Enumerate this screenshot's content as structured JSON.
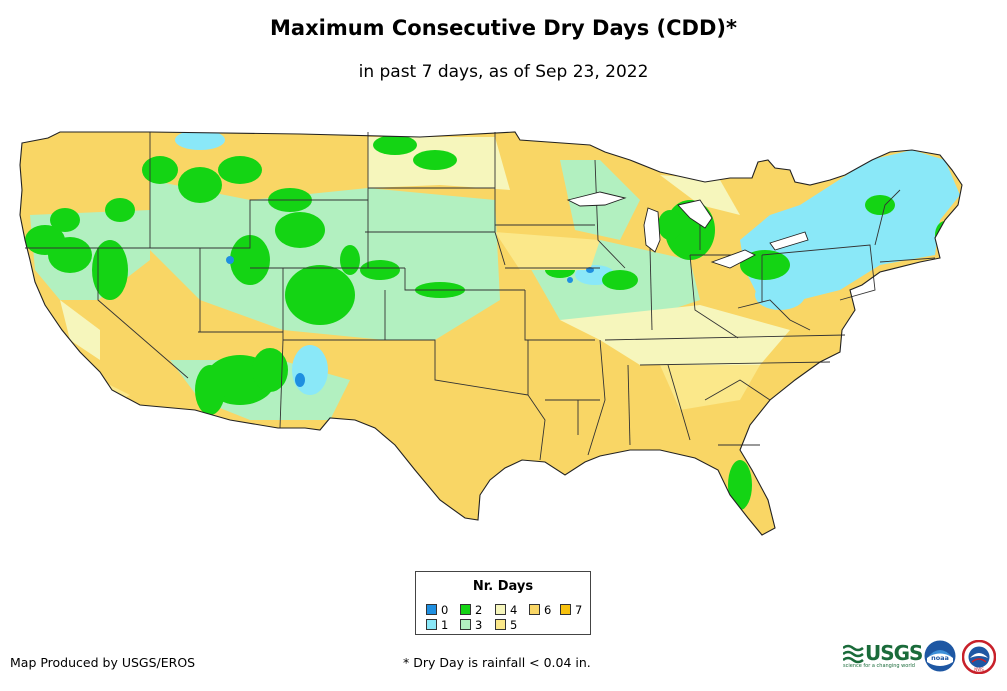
{
  "title": "Maximum Consecutive Dry Days (CDD)*",
  "subtitle": "in past 7 days, as of Sep 23, 2022",
  "legend": {
    "title": "Nr. Days",
    "items": [
      {
        "label": "0",
        "color": "#1f8fe0"
      },
      {
        "label": "1",
        "color": "#8ae8f8"
      },
      {
        "label": "2",
        "color": "#14d414"
      },
      {
        "label": "3",
        "color": "#b2f0c0"
      },
      {
        "label": "4",
        "color": "#f6f6bc"
      },
      {
        "label": "5",
        "color": "#fbe88a"
      },
      {
        "label": "6",
        "color": "#f9d665"
      },
      {
        "label": "7",
        "color": "#f8c20e"
      }
    ]
  },
  "credit": "Map Produced by USGS/EROS",
  "footnote": "* Dry Day is rainfall < 0.04 in.",
  "logos": {
    "usgs_text": "USGS",
    "usgs_tagline": "science for a changing world",
    "noaa_text": "noaa",
    "nws_text": "NWS"
  }
}
